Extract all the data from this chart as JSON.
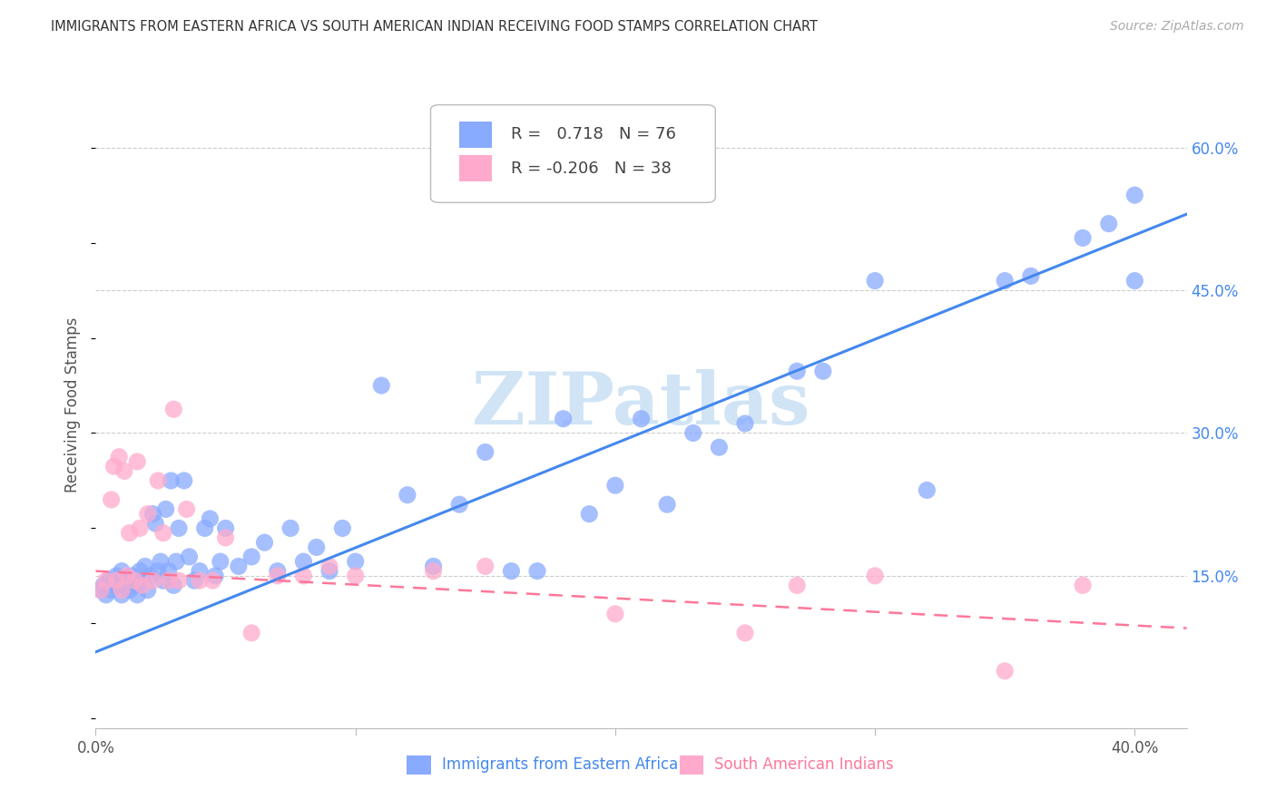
{
  "title": "IMMIGRANTS FROM EASTERN AFRICA VS SOUTH AMERICAN INDIAN RECEIVING FOOD STAMPS CORRELATION CHART",
  "source": "Source: ZipAtlas.com",
  "xlabel_blue": "Immigrants from Eastern Africa",
  "xlabel_pink": "South American Indians",
  "ylabel": "Receiving Food Stamps",
  "xlim": [
    0.0,
    0.42
  ],
  "ylim": [
    -0.01,
    0.67
  ],
  "xticks": [
    0.0,
    0.1,
    0.2,
    0.3,
    0.4
  ],
  "xtick_labels_show": [
    "0.0%",
    "",
    "",
    "",
    "40.0%"
  ],
  "yticks": [
    0.15,
    0.3,
    0.45,
    0.6
  ],
  "ytick_labels": [
    "15.0%",
    "30.0%",
    "45.0%",
    "60.0%"
  ],
  "blue_R": 0.718,
  "blue_N": 76,
  "pink_R": -0.206,
  "pink_N": 38,
  "blue_color": "#88aaff",
  "pink_color": "#ffaacc",
  "line_blue_color": "#4488ee",
  "line_pink_color": "#ff7799",
  "watermark": "ZIPatlas",
  "blue_line_x": [
    0.0,
    0.42
  ],
  "blue_line_y": [
    0.07,
    0.53
  ],
  "pink_line_x": [
    0.0,
    0.42
  ],
  "pink_line_y": [
    0.155,
    0.095
  ],
  "blue_x": [
    0.002,
    0.003,
    0.004,
    0.005,
    0.006,
    0.007,
    0.008,
    0.009,
    0.01,
    0.01,
    0.011,
    0.012,
    0.013,
    0.014,
    0.015,
    0.016,
    0.017,
    0.018,
    0.019,
    0.02,
    0.021,
    0.022,
    0.023,
    0.024,
    0.025,
    0.026,
    0.027,
    0.028,
    0.029,
    0.03,
    0.031,
    0.032,
    0.034,
    0.036,
    0.038,
    0.04,
    0.042,
    0.044,
    0.046,
    0.048,
    0.05,
    0.055,
    0.06,
    0.065,
    0.07,
    0.075,
    0.08,
    0.085,
    0.09,
    0.095,
    0.1,
    0.11,
    0.12,
    0.13,
    0.14,
    0.15,
    0.16,
    0.17,
    0.18,
    0.19,
    0.2,
    0.21,
    0.22,
    0.23,
    0.24,
    0.25,
    0.27,
    0.28,
    0.3,
    0.32,
    0.35,
    0.36,
    0.38,
    0.39,
    0.4,
    0.4
  ],
  "blue_y": [
    0.135,
    0.14,
    0.13,
    0.145,
    0.135,
    0.14,
    0.15,
    0.145,
    0.13,
    0.155,
    0.14,
    0.145,
    0.135,
    0.15,
    0.14,
    0.13,
    0.155,
    0.145,
    0.16,
    0.135,
    0.15,
    0.215,
    0.205,
    0.155,
    0.165,
    0.145,
    0.22,
    0.155,
    0.25,
    0.14,
    0.165,
    0.2,
    0.25,
    0.17,
    0.145,
    0.155,
    0.2,
    0.21,
    0.15,
    0.165,
    0.2,
    0.16,
    0.17,
    0.185,
    0.155,
    0.2,
    0.165,
    0.18,
    0.155,
    0.2,
    0.165,
    0.35,
    0.235,
    0.16,
    0.225,
    0.28,
    0.155,
    0.155,
    0.315,
    0.215,
    0.245,
    0.315,
    0.225,
    0.3,
    0.285,
    0.31,
    0.365,
    0.365,
    0.46,
    0.24,
    0.46,
    0.465,
    0.505,
    0.52,
    0.46,
    0.55
  ],
  "pink_x": [
    0.002,
    0.004,
    0.006,
    0.007,
    0.008,
    0.009,
    0.01,
    0.011,
    0.012,
    0.013,
    0.015,
    0.016,
    0.017,
    0.018,
    0.02,
    0.022,
    0.024,
    0.026,
    0.028,
    0.03,
    0.032,
    0.035,
    0.04,
    0.045,
    0.05,
    0.06,
    0.07,
    0.08,
    0.09,
    0.1,
    0.13,
    0.15,
    0.2,
    0.25,
    0.27,
    0.3,
    0.35,
    0.38
  ],
  "pink_y": [
    0.135,
    0.145,
    0.23,
    0.265,
    0.145,
    0.275,
    0.135,
    0.26,
    0.15,
    0.195,
    0.145,
    0.27,
    0.2,
    0.14,
    0.215,
    0.145,
    0.25,
    0.195,
    0.145,
    0.325,
    0.145,
    0.22,
    0.145,
    0.145,
    0.19,
    0.09,
    0.15,
    0.15,
    0.16,
    0.15,
    0.155,
    0.16,
    0.11,
    0.09,
    0.14,
    0.15,
    0.05,
    0.14
  ]
}
